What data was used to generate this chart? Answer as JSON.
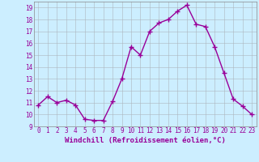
{
  "x": [
    0,
    1,
    2,
    3,
    4,
    5,
    6,
    7,
    8,
    9,
    10,
    11,
    12,
    13,
    14,
    15,
    16,
    17,
    18,
    19,
    20,
    21,
    22,
    23
  ],
  "y": [
    10.8,
    11.5,
    11.0,
    11.2,
    10.8,
    9.6,
    9.5,
    9.5,
    11.1,
    13.0,
    15.7,
    15.0,
    17.0,
    17.7,
    18.0,
    18.7,
    19.2,
    17.6,
    17.4,
    15.7,
    13.5,
    11.3,
    10.7,
    10.0
  ],
  "xlabel": "Windchill (Refroidissement éolien,°C)",
  "line_color": "#990099",
  "marker": "+",
  "marker_size": 5,
  "line_width": 1.0,
  "bg_color": "#cceeff",
  "grid_color": "#adb5bd",
  "ylim": [
    9,
    19.5
  ],
  "yticks": [
    9,
    10,
    11,
    12,
    13,
    14,
    15,
    16,
    17,
    18,
    19
  ],
  "xlim": [
    -0.5,
    23.5
  ],
  "xticks": [
    0,
    1,
    2,
    3,
    4,
    5,
    6,
    7,
    8,
    9,
    10,
    11,
    12,
    13,
    14,
    15,
    16,
    17,
    18,
    19,
    20,
    21,
    22,
    23
  ],
  "tick_color": "#990099",
  "tick_fontsize": 5.5,
  "xlabel_fontsize": 6.5,
  "spine_color": "#888888"
}
